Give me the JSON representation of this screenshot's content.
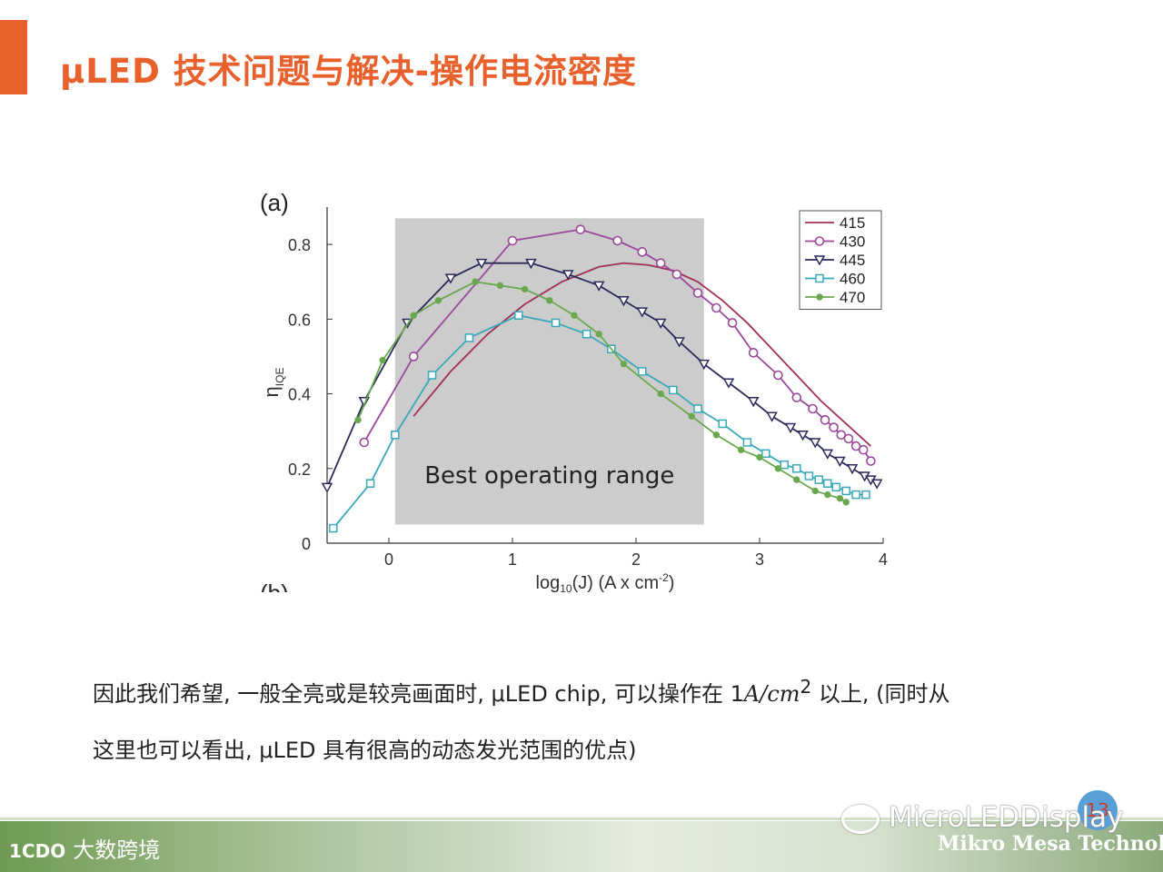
{
  "slide": {
    "title": "μLED 技术问题与解决-操作电流密度",
    "accent_color": "#e8602c",
    "caption_line1_pre": "因此我们希望, 一般全亮或是较亮画面时, μLED chip, 可以操作在 1",
    "caption_line1_math": "A/cm",
    "caption_line1_sup": "2",
    "caption_line1_post": " 以上, (同时从",
    "caption_line2": "这里也可以看出, μLED 具有很高的动态发光范围的优点)",
    "page_number": "13"
  },
  "footer": {
    "left_logo_mark": "1CDO",
    "left_logo_text": "大数跨境",
    "wechat_text": "MicroLEDDisplay",
    "company": "Mikro Mesa Technology"
  },
  "chart_data": {
    "type": "line",
    "panel_label": "(a)",
    "next_panel_label": "(b)",
    "xlabel_main": "log",
    "xlabel_sub": "10",
    "xlabel_rest": "(J) (A x cm",
    "xlabel_sup": "-2",
    "xlabel_end": ")",
    "ylabel_main": "η",
    "ylabel_sub": "IQE",
    "xlim": [
      -0.5,
      4
    ],
    "ylim": [
      0,
      0.9
    ],
    "xticks": [
      "0",
      "1",
      "2",
      "3",
      "4"
    ],
    "yticks": [
      "0",
      "0.2",
      "0.4",
      "0.6",
      "0.8"
    ],
    "shaded_region": {
      "label": "Best operating range",
      "x": [
        0.05,
        2.55
      ],
      "y": [
        0.05,
        0.87
      ],
      "color": "#cccccc"
    },
    "series": [
      {
        "name": "415",
        "color": "#a0305a",
        "marker": "none",
        "x": [
          0.2,
          0.5,
          0.8,
          1.1,
          1.4,
          1.7,
          1.9,
          2.1,
          2.3,
          2.5,
          2.7,
          2.9,
          3.1,
          3.3,
          3.5,
          3.7,
          3.9
        ],
        "y": [
          0.34,
          0.46,
          0.56,
          0.64,
          0.7,
          0.74,
          0.75,
          0.745,
          0.73,
          0.7,
          0.65,
          0.59,
          0.52,
          0.45,
          0.38,
          0.32,
          0.26
        ]
      },
      {
        "name": "430",
        "color": "#9a4a9a",
        "marker": "circle",
        "x": [
          -0.2,
          0.2,
          1.0,
          1.55,
          1.85,
          2.05,
          2.2,
          2.33,
          2.5,
          2.65,
          2.78,
          2.95,
          3.15,
          3.3,
          3.43,
          3.53,
          3.6,
          3.66,
          3.72,
          3.78,
          3.84,
          3.9
        ],
        "y": [
          0.27,
          0.5,
          0.81,
          0.84,
          0.81,
          0.78,
          0.75,
          0.72,
          0.67,
          0.63,
          0.59,
          0.51,
          0.45,
          0.39,
          0.36,
          0.33,
          0.31,
          0.29,
          0.28,
          0.26,
          0.25,
          0.22
        ]
      },
      {
        "name": "445",
        "color": "#2a2a5a",
        "marker": "triangle",
        "x": [
          -0.5,
          -0.2,
          0.15,
          0.5,
          0.75,
          1.15,
          1.45,
          1.7,
          1.9,
          2.05,
          2.2,
          2.35,
          2.55,
          2.75,
          2.95,
          3.1,
          3.25,
          3.35,
          3.45,
          3.55,
          3.65,
          3.75,
          3.85,
          3.9,
          3.95
        ],
        "y": [
          0.15,
          0.38,
          0.59,
          0.71,
          0.75,
          0.75,
          0.72,
          0.69,
          0.65,
          0.62,
          0.59,
          0.54,
          0.48,
          0.43,
          0.38,
          0.34,
          0.31,
          0.29,
          0.27,
          0.24,
          0.22,
          0.2,
          0.18,
          0.17,
          0.16
        ]
      },
      {
        "name": "460",
        "color": "#3aa8b8",
        "marker": "square",
        "x": [
          -0.45,
          -0.15,
          0.05,
          0.35,
          0.65,
          1.05,
          1.35,
          1.6,
          1.8,
          2.05,
          2.3,
          2.5,
          2.7,
          2.9,
          3.05,
          3.2,
          3.3,
          3.4,
          3.48,
          3.55,
          3.62,
          3.7,
          3.78,
          3.86
        ],
        "y": [
          0.04,
          0.16,
          0.29,
          0.45,
          0.55,
          0.61,
          0.59,
          0.56,
          0.52,
          0.46,
          0.41,
          0.36,
          0.32,
          0.27,
          0.24,
          0.21,
          0.2,
          0.18,
          0.17,
          0.16,
          0.15,
          0.14,
          0.13,
          0.13
        ]
      },
      {
        "name": "470",
        "color": "#6aa84f",
        "marker": "dot",
        "x": [
          -0.25,
          -0.05,
          0.2,
          0.4,
          0.7,
          0.9,
          1.1,
          1.3,
          1.5,
          1.7,
          1.9,
          2.2,
          2.45,
          2.65,
          2.85,
          3.0,
          3.15,
          3.3,
          3.45,
          3.55,
          3.65,
          3.7
        ],
        "y": [
          0.33,
          0.49,
          0.61,
          0.65,
          0.7,
          0.69,
          0.68,
          0.65,
          0.61,
          0.56,
          0.48,
          0.4,
          0.34,
          0.29,
          0.25,
          0.23,
          0.2,
          0.17,
          0.14,
          0.13,
          0.12,
          0.11
        ]
      }
    ],
    "legend_position": "top-right"
  }
}
